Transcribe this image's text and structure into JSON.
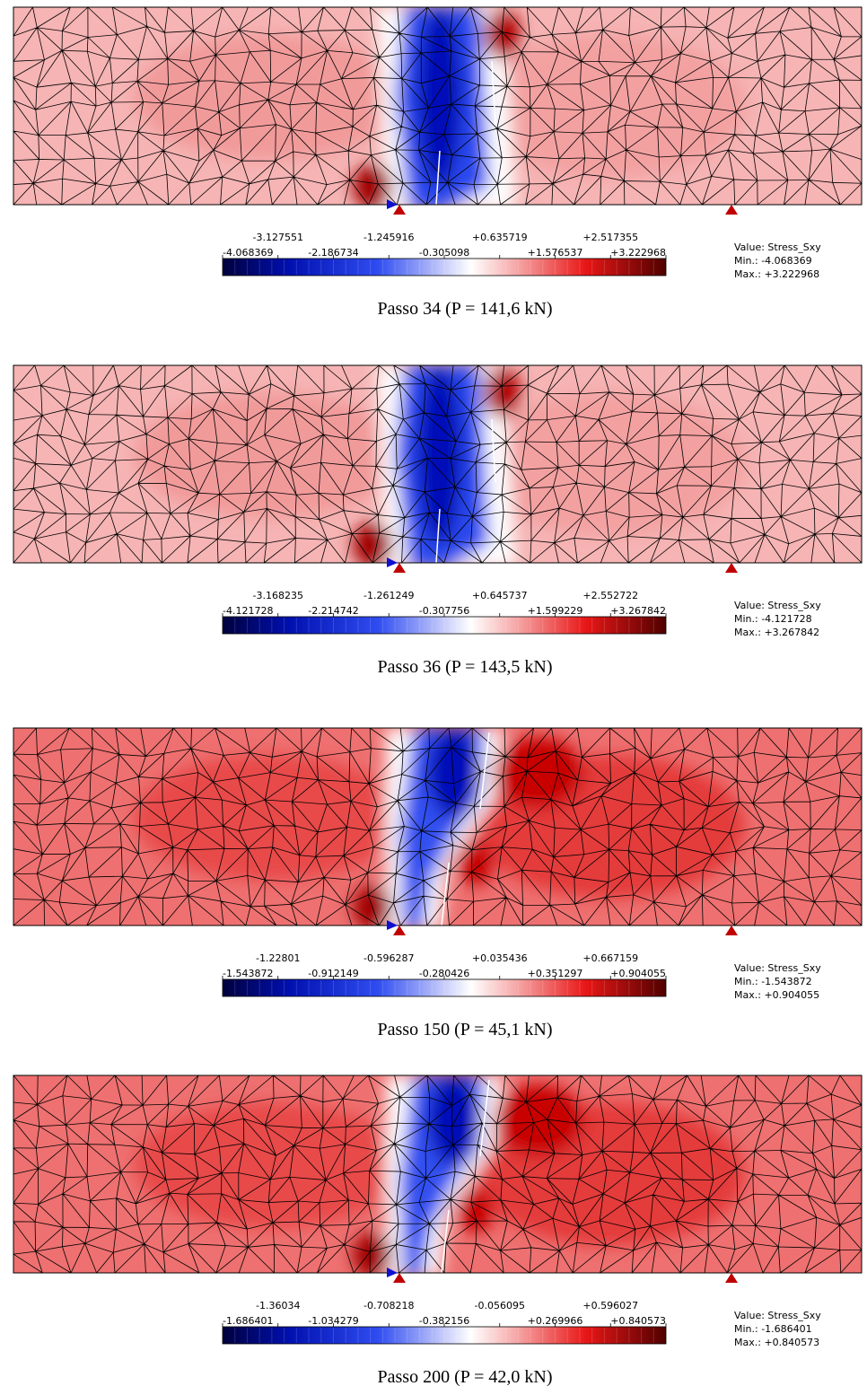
{
  "panels": [
    {
      "tick_labels": [
        "-4.068369",
        "-3.127551",
        "-2.186734",
        "-1.245916",
        "-0.305098",
        "+0.635719",
        "+1.576537",
        "+2.517355",
        "+3.222968"
      ],
      "legend": [
        "Value: Stress_Sxy",
        "Min.: -4.068369",
        "Max.: +3.222968"
      ],
      "caption": "Passo 34 (P = 141,6 kN)"
    },
    {
      "tick_labels": [
        "-4.121728",
        "-3.168235",
        "-2.214742",
        "-1.261249",
        "-0.307756",
        "+0.645737",
        "+1.599229",
        "+2.552722",
        "+3.267842"
      ],
      "legend": [
        "Value: Stress_Sxy",
        "Min.: -4.121728",
        "Max.: +3.267842"
      ],
      "caption": "Passo 36 (P = 143,5 kN)"
    },
    {
      "tick_labels": [
        "-1.543872",
        "-1.22801",
        "-0.912149",
        "-0.596287",
        "-0.280426",
        "+0.035436",
        "+0.351297",
        "+0.667159",
        "+0.904055"
      ],
      "legend": [
        "Value: Stress_Sxy",
        "Min.: -1.543872",
        "Max.: +0.904055"
      ],
      "caption": "Passo 150 (P = 45,1 kN)"
    },
    {
      "tick_labels": [
        "-1.686401",
        "-1.36034",
        "-1.034279",
        "-0.708218",
        "-0.382156",
        "-0.056095",
        "+0.269966",
        "+0.596027",
        "+0.840573"
      ],
      "legend": [
        "Value: Stress_Sxy",
        "Min.: -1.686401",
        "Max.: +0.840573"
      ],
      "caption": "Passo 200 (P = 42,0 kN)"
    }
  ]
}
